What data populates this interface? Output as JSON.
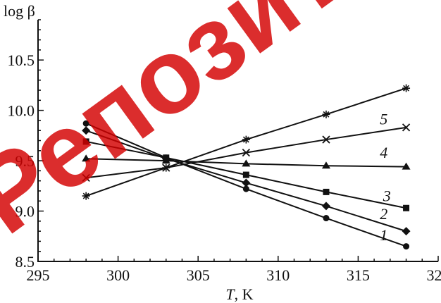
{
  "chart_data": {
    "type": "line",
    "xlabel": {
      "italic": "T",
      "rest": ", K"
    },
    "ylabel": "log β",
    "xlim": [
      295,
      320
    ],
    "ylim": [
      8.5,
      10.9
    ],
    "x_ticks": [
      295,
      300,
      305,
      310,
      315,
      320
    ],
    "x_tick_labels": [
      "295",
      "300",
      "305",
      "310",
      "315",
      "320"
    ],
    "y_ticks": [
      8.5,
      9.0,
      9.5,
      10.0,
      10.5
    ],
    "y_tick_labels": [
      "8.5",
      "9.0",
      "9.5",
      "10.0",
      "10.5"
    ],
    "grid": false,
    "x": [
      298,
      303,
      308,
      313,
      318
    ],
    "series": [
      {
        "label": "1",
        "marker": "circle",
        "values": [
          9.87,
          9.53,
          9.22,
          8.93,
          8.65
        ]
      },
      {
        "label": "2",
        "marker": "diamond",
        "values": [
          9.8,
          9.52,
          9.28,
          9.05,
          8.8
        ]
      },
      {
        "label": "3",
        "marker": "square",
        "values": [
          9.69,
          9.53,
          9.36,
          9.19,
          9.03
        ]
      },
      {
        "label": "4",
        "marker": "triangle",
        "values": [
          9.52,
          9.5,
          9.47,
          9.45,
          9.44
        ]
      },
      {
        "label": "5",
        "marker": "x",
        "values": [
          9.33,
          9.43,
          9.58,
          9.71,
          9.83
        ]
      },
      {
        "label": "",
        "marker": "star",
        "values": [
          9.15,
          9.43,
          9.71,
          9.96,
          10.22
        ]
      }
    ],
    "series_label_positions": {
      "1": [
        316.6,
        8.71
      ],
      "2": [
        316.6,
        8.92
      ],
      "3": [
        316.8,
        9.1
      ],
      "4": [
        316.6,
        9.53
      ],
      "5": [
        316.6,
        9.86
      ]
    },
    "colors": {
      "line": "#111111",
      "axis": "#111111",
      "watermark": "#d40000"
    }
  },
  "watermark": {
    "text": "Репозиторий"
  }
}
